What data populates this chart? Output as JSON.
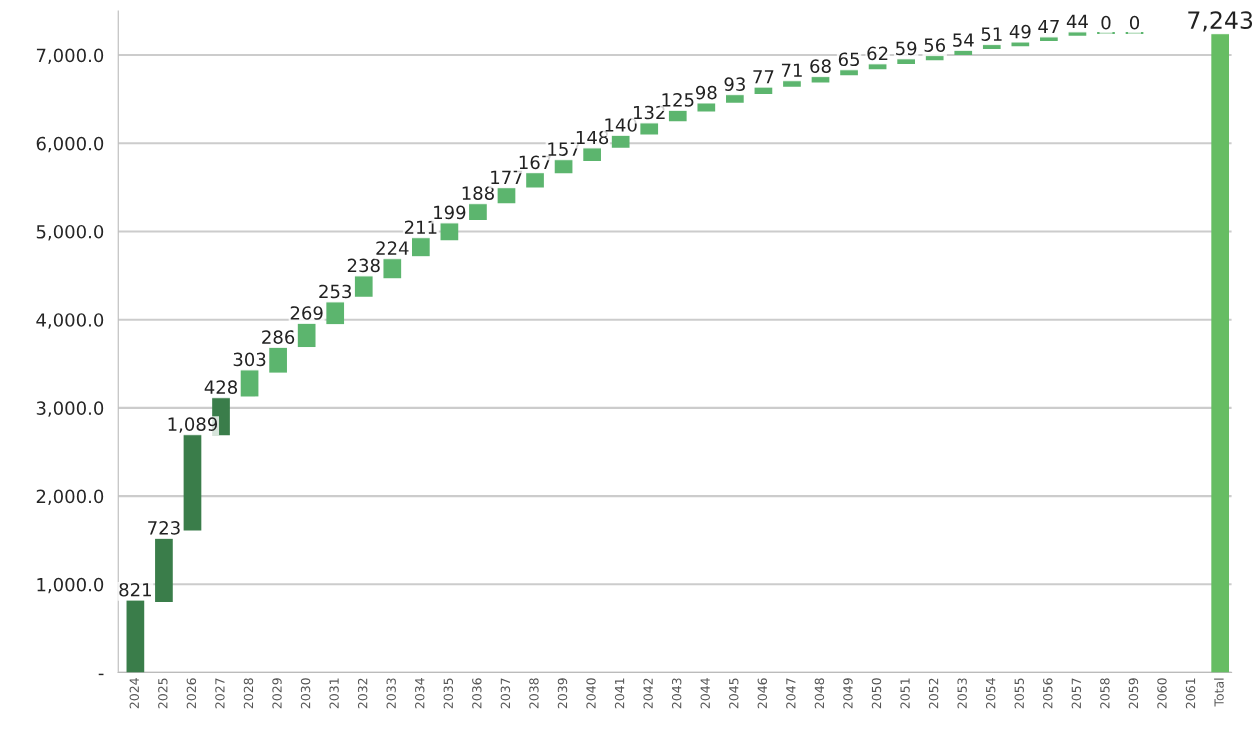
{
  "chart_data": {
    "type": "bar",
    "categories": [
      "2024",
      "2025",
      "2026",
      "2027",
      "2028",
      "2029",
      "2030",
      "2031",
      "2032",
      "2033",
      "2034",
      "2035",
      "2036",
      "2037",
      "2038",
      "2039",
      "2040",
      "2041",
      "2042",
      "2043",
      "2044",
      "2045",
      "2046",
      "2047",
      "2048",
      "2049",
      "2050",
      "2051",
      "2052",
      "2053",
      "2054",
      "2055",
      "2056",
      "2057",
      "2058",
      "2059",
      "2060",
      "2061",
      "Total"
    ],
    "values": [
      821,
      723,
      1089,
      428,
      303,
      286,
      269,
      253,
      238,
      224,
      211,
      199,
      188,
      177,
      167,
      157,
      148,
      140,
      132,
      125,
      98,
      93,
      77,
      71,
      68,
      65,
      62,
      59,
      56,
      54,
      51,
      49,
      47,
      44,
      0,
      0,
      null,
      null,
      7243
    ],
    "base": [
      0,
      800,
      1610,
      2690,
      3130,
      3400,
      3690,
      3950,
      4260,
      4470,
      4720,
      4900,
      5130,
      5320,
      5500,
      5660,
      5800,
      5950,
      6100,
      6250,
      6360,
      6460,
      6560,
      6640,
      6690,
      6770,
      6840,
      6900,
      6940,
      7000,
      7070,
      7100,
      7160,
      7220,
      7250,
      7250,
      null,
      null,
      0
    ],
    "colors": [
      "#3a7d4a",
      "#3a7d4a",
      "#3a7d4a",
      "#3a7d4a",
      "#5cb56e",
      "#5cb56e",
      "#5cb56e",
      "#5cb56e",
      "#5cb56e",
      "#5cb56e",
      "#5cb56e",
      "#5cb56e",
      "#5cb56e",
      "#5cb56e",
      "#5cb56e",
      "#5cb56e",
      "#5cb56e",
      "#5cb56e",
      "#5cb56e",
      "#5cb56e",
      "#5cb56e",
      "#5cb56e",
      "#5cb56e",
      "#5cb56e",
      "#5cb56e",
      "#5cb56e",
      "#5cb56e",
      "#5cb56e",
      "#5cb56e",
      "#5cb56e",
      "#5cb56e",
      "#5cb56e",
      "#5cb56e",
      "#5cb56e",
      "#5cb56e",
      "#5cb56e",
      "#5cb56e",
      "#5cb56e",
      "#66bd63"
    ],
    "value_labels": [
      "821",
      "723",
      "1,089",
      "428",
      "303",
      "286",
      "269",
      "253",
      "238",
      "224",
      "211",
      "199",
      "188",
      "177",
      "167",
      "157",
      "148",
      "140",
      "132",
      "125",
      "98",
      "93",
      "77",
      "71",
      "68",
      "65",
      "62",
      "59",
      "56",
      "54",
      "51",
      "49",
      "47",
      "44",
      "0",
      "0",
      null,
      null,
      "7,243"
    ],
    "ylim": [
      0,
      7500
    ],
    "yticks": [
      {
        "value": 0,
        "label": "-"
      },
      {
        "value": 1000,
        "label": "1,000.0"
      },
      {
        "value": 2000,
        "label": "2,000.0"
      },
      {
        "value": 3000,
        "label": "3,000.0"
      },
      {
        "value": 4000,
        "label": "4,000.0"
      },
      {
        "value": 5000,
        "label": "5,000.0"
      },
      {
        "value": 6000,
        "label": "6,000.0"
      },
      {
        "value": 7000,
        "label": "7,000.0"
      }
    ],
    "grid": "y"
  }
}
